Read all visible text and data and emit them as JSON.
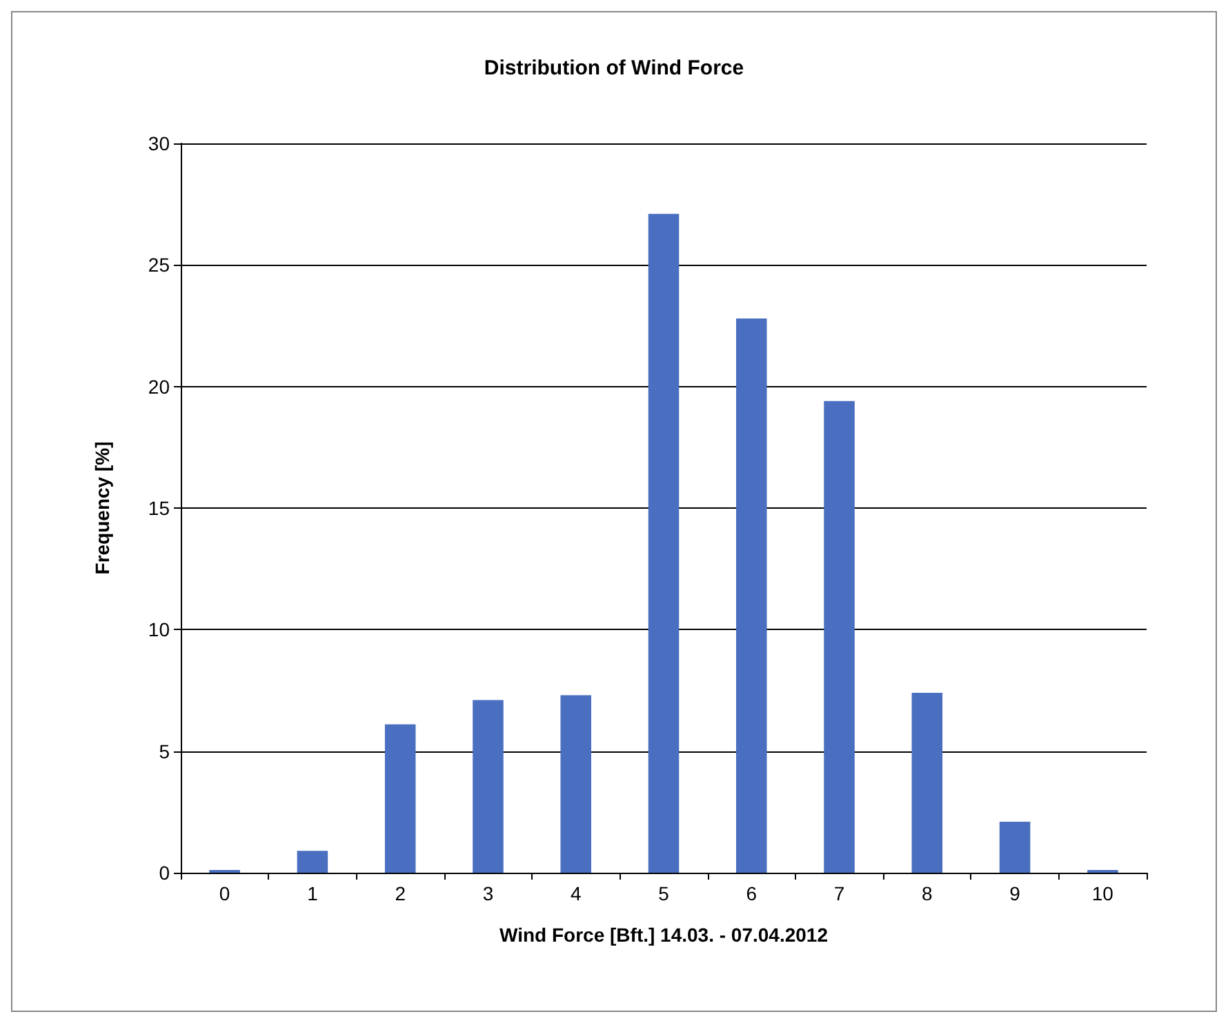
{
  "chart_data": {
    "type": "bar",
    "title": "Distribution of Wind Force",
    "xlabel": "Wind Force [Bft.] 14.03. - 07.04.2012",
    "ylabel": "Frequency [%]",
    "categories": [
      "0",
      "1",
      "2",
      "3",
      "4",
      "5",
      "6",
      "7",
      "8",
      "9",
      "10"
    ],
    "values": [
      0,
      0.9,
      6.1,
      7.1,
      7.3,
      27.1,
      22.8,
      19.4,
      7.4,
      2.1,
      0
    ],
    "color": "#4a6fc0",
    "ylim": [
      0,
      30
    ],
    "yticks": [
      0,
      5,
      10,
      15,
      20,
      25,
      30
    ],
    "grid": "y"
  }
}
